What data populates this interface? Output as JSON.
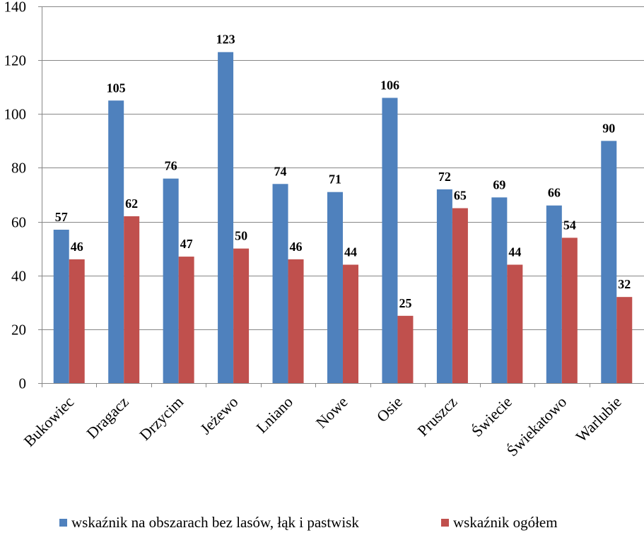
{
  "chart_data": {
    "type": "bar",
    "categories": [
      "Bukowiec",
      "Dragacz",
      "Drzycim",
      "Jeżewo",
      "Lniano",
      "Nowe",
      "Osie",
      "Pruszcz",
      "Świecie",
      "Świekatowo",
      "Warlubie"
    ],
    "series": [
      {
        "name": "wskaźnik na obszarach bez lasów, łąk i pastwisk",
        "color": "#4f81bd",
        "values": [
          57,
          105,
          76,
          123,
          74,
          71,
          106,
          72,
          69,
          66,
          90
        ]
      },
      {
        "name": "wskaźnik ogółem",
        "color": "#c0504d",
        "values": [
          46,
          62,
          47,
          50,
          46,
          44,
          25,
          65,
          44,
          54,
          32
        ]
      }
    ],
    "ylim": [
      0,
      140
    ],
    "yticks": [
      "0",
      "20",
      "40",
      "60",
      "80",
      "100",
      "120",
      "140"
    ],
    "grid": true,
    "legend_position": "bottom",
    "data_labels": true
  }
}
